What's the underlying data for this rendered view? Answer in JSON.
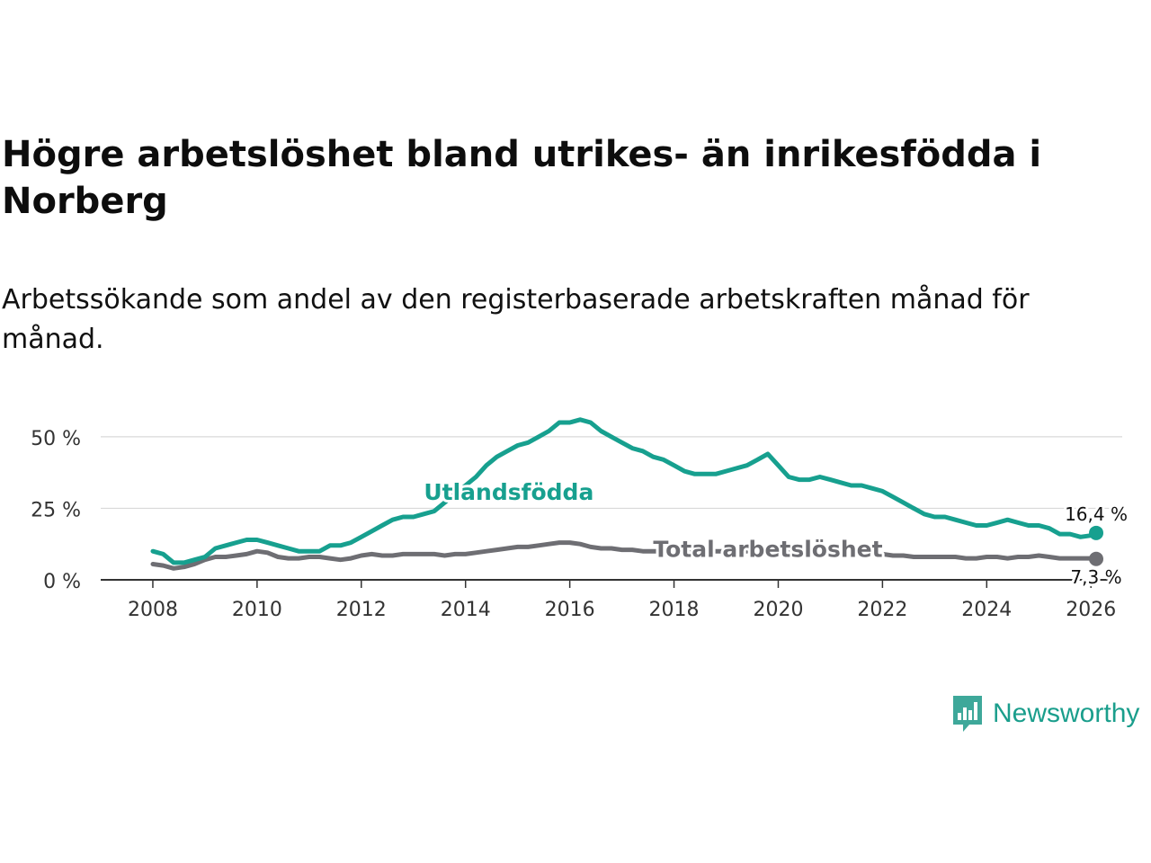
{
  "title": "Högre arbetslöshet bland utrikes- än inrikesfödda i Norberg",
  "subtitle": "Arbetssökande som andel av den registerbaserade arbetskraften månad för månad.",
  "brand": "Newsworthy",
  "colors": {
    "foreign": "#17a08f",
    "total": "#6e6e73",
    "grid": "#d9d9d9",
    "axis": "#333333"
  },
  "chart_data": {
    "type": "line",
    "title": "Högre arbetslöshet bland utrikes- än inrikesfödda i Norberg",
    "xlabel": "",
    "ylabel": "",
    "xlim": [
      2007.0,
      2026.6
    ],
    "ylim": [
      0,
      55
    ],
    "x_ticks": [
      2008,
      2010,
      2012,
      2014,
      2016,
      2018,
      2020,
      2022,
      2024,
      2026
    ],
    "x_tick_labels": [
      "2008",
      "2010",
      "2012",
      "2014",
      "2016",
      "2018",
      "2020",
      "2022",
      "2024",
      "2026"
    ],
    "y_ticks": [
      0,
      25,
      50
    ],
    "y_tick_labels": [
      "0 %",
      "25 %",
      "50 %"
    ],
    "grid": true,
    "series": [
      {
        "name": "Utlandsfödda",
        "label": "Utlandsfödda",
        "color": "#17a08f",
        "end_label": "16,4 %",
        "x": [
          2008.0,
          2008.2,
          2008.4,
          2008.6,
          2008.8,
          2009.0,
          2009.2,
          2009.4,
          2009.6,
          2009.8,
          2010.0,
          2010.2,
          2010.4,
          2010.6,
          2010.8,
          2011.0,
          2011.2,
          2011.4,
          2011.6,
          2011.8,
          2012.0,
          2012.2,
          2012.4,
          2012.6,
          2012.8,
          2013.0,
          2013.2,
          2013.4,
          2013.6,
          2013.8,
          2014.0,
          2014.2,
          2014.4,
          2014.6,
          2014.8,
          2015.0,
          2015.2,
          2015.4,
          2015.6,
          2015.8,
          2016.0,
          2016.2,
          2016.4,
          2016.6,
          2016.8,
          2017.0,
          2017.2,
          2017.4,
          2017.6,
          2017.8,
          2018.0,
          2018.2,
          2018.4,
          2018.6,
          2018.8,
          2019.0,
          2019.2,
          2019.4,
          2019.6,
          2019.8,
          2020.0,
          2020.2,
          2020.4,
          2020.6,
          2020.8,
          2021.0,
          2021.2,
          2021.4,
          2021.6,
          2021.8,
          2022.0,
          2022.2,
          2022.4,
          2022.6,
          2022.8,
          2023.0,
          2023.2,
          2023.4,
          2023.6,
          2023.8,
          2024.0,
          2024.2,
          2024.4,
          2024.6,
          2024.8,
          2025.0,
          2025.2,
          2025.4,
          2025.6,
          2025.8,
          2026.0,
          2026.1
        ],
        "y": [
          10,
          9,
          6,
          6,
          7,
          8,
          11,
          12,
          13,
          14,
          14,
          13,
          12,
          11,
          10,
          10,
          10,
          12,
          12,
          13,
          15,
          17,
          19,
          21,
          22,
          22,
          23,
          24,
          27,
          30,
          33,
          36,
          40,
          43,
          45,
          47,
          48,
          50,
          52,
          55,
          55,
          56,
          55,
          52,
          50,
          48,
          46,
          45,
          43,
          42,
          40,
          38,
          37,
          37,
          37,
          38,
          39,
          40,
          42,
          44,
          40,
          36,
          35,
          35,
          36,
          35,
          34,
          33,
          33,
          32,
          31,
          29,
          27,
          25,
          23,
          22,
          22,
          21,
          20,
          19,
          19,
          20,
          21,
          20,
          19,
          19,
          18,
          16,
          16,
          15,
          15.5,
          16.4
        ]
      },
      {
        "name": "Total arbetslöshet",
        "label": "Total arbetslöshet",
        "color": "#6e6e73",
        "end_label": "7,3 %",
        "x": [
          2008.0,
          2008.2,
          2008.4,
          2008.6,
          2008.8,
          2009.0,
          2009.2,
          2009.4,
          2009.6,
          2009.8,
          2010.0,
          2010.2,
          2010.4,
          2010.6,
          2010.8,
          2011.0,
          2011.2,
          2011.4,
          2011.6,
          2011.8,
          2012.0,
          2012.2,
          2012.4,
          2012.6,
          2012.8,
          2013.0,
          2013.2,
          2013.4,
          2013.6,
          2013.8,
          2014.0,
          2014.2,
          2014.4,
          2014.6,
          2014.8,
          2015.0,
          2015.2,
          2015.4,
          2015.6,
          2015.8,
          2016.0,
          2016.2,
          2016.4,
          2016.6,
          2016.8,
          2017.0,
          2017.2,
          2017.4,
          2017.6,
          2017.8,
          2018.0,
          2018.2,
          2018.4,
          2018.6,
          2018.8,
          2019.0,
          2019.2,
          2019.4,
          2019.6,
          2019.8,
          2020.0,
          2020.2,
          2020.4,
          2020.6,
          2020.8,
          2021.0,
          2021.2,
          2021.4,
          2021.6,
          2021.8,
          2022.0,
          2022.2,
          2022.4,
          2022.6,
          2022.8,
          2023.0,
          2023.2,
          2023.4,
          2023.6,
          2023.8,
          2024.0,
          2024.2,
          2024.4,
          2024.6,
          2024.8,
          2025.0,
          2025.2,
          2025.4,
          2025.6,
          2025.8,
          2026.0,
          2026.1
        ],
        "y": [
          5.5,
          5,
          4,
          4.5,
          5.5,
          7,
          8,
          8,
          8.5,
          9,
          10,
          9.5,
          8,
          7.5,
          7.5,
          8,
          8,
          7.5,
          7,
          7.5,
          8.5,
          9,
          8.5,
          8.5,
          9,
          9,
          9,
          9,
          8.5,
          9,
          9,
          9.5,
          10,
          10.5,
          11,
          11.5,
          11.5,
          12,
          12.5,
          13,
          13,
          12.5,
          11.5,
          11,
          11,
          10.5,
          10.5,
          10,
          10,
          10,
          10,
          10,
          10,
          10,
          10,
          10,
          10,
          10,
          10.5,
          10.5,
          10,
          9.5,
          9.5,
          9.5,
          9.5,
          9.5,
          9.5,
          9,
          9,
          9,
          9,
          8.5,
          8.5,
          8,
          8,
          8,
          8,
          8,
          7.5,
          7.5,
          8,
          8,
          7.5,
          8,
          8,
          8.5,
          8,
          7.5,
          7.5,
          7.5,
          7.5,
          7.3
        ]
      }
    ]
  }
}
